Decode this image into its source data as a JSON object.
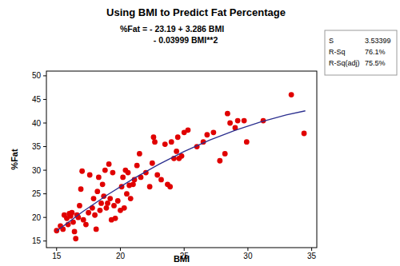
{
  "chart_data": {
    "type": "scatter",
    "title": "Using BMI to Predict Fat Percentage",
    "subtitle": [
      "%Fat = - 23.19 + 3.286 BMI",
      "- 0.03999 BMI**2"
    ],
    "x_label": "BMI",
    "y_label": "%Fat",
    "xlim": [
      14.2,
      35.4
    ],
    "ylim": [
      13.6,
      51
    ],
    "xticks": [
      15,
      20,
      25,
      30,
      35
    ],
    "yticks": [
      15,
      20,
      25,
      30,
      35,
      40,
      45,
      50
    ],
    "grid": false,
    "annotations": [
      {
        "label": "S",
        "value": "3.53399"
      },
      {
        "label": "R-Sq",
        "value": "76.1%"
      },
      {
        "label": "R-Sq(adj)",
        "value": "75.5%"
      }
    ],
    "series": [
      {
        "type": "scatter",
        "color": "#e00000",
        "marker": "circle",
        "x": [
          15.0,
          15.3,
          15.5,
          15.6,
          15.8,
          15.9,
          16.0,
          16.1,
          16.2,
          16.3,
          16.4,
          16.5,
          16.6,
          16.7,
          16.8,
          16.9,
          17.0,
          17.1,
          17.3,
          17.5,
          17.6,
          17.8,
          17.9,
          18.0,
          18.1,
          18.2,
          18.3,
          18.4,
          18.5,
          18.6,
          18.7,
          18.8,
          18.9,
          19.0,
          19.1,
          19.2,
          19.3,
          19.4,
          19.5,
          19.6,
          19.8,
          20.0,
          20.1,
          20.2,
          20.3,
          20.4,
          20.5,
          20.6,
          20.7,
          20.8,
          21.0,
          21.1,
          21.3,
          21.5,
          21.6,
          22.0,
          22.3,
          22.5,
          22.6,
          22.7,
          22.9,
          23.2,
          23.5,
          23.7,
          23.9,
          24.0,
          24.2,
          24.4,
          24.5,
          24.6,
          24.8,
          25.0,
          25.3,
          26.0,
          26.5,
          26.8,
          27.3,
          27.8,
          28.2,
          28.4,
          28.6,
          29.0,
          29.2,
          29.7,
          29.9,
          31.2,
          33.4,
          34.4
        ],
        "values": [
          17.2,
          18.2,
          17.5,
          20.5,
          19.8,
          18.5,
          20.8,
          20.3,
          21.0,
          19.0,
          17.0,
          15.5,
          20.5,
          20.0,
          22.5,
          26.0,
          29.8,
          19.5,
          18.5,
          21.0,
          29.0,
          22.0,
          24.0,
          20.5,
          17.5,
          25.5,
          28.5,
          21.5,
          23.0,
          27.0,
          24.5,
          30.0,
          22.0,
          23.0,
          31.3,
          24.0,
          19.5,
          29.5,
          22.5,
          19.8,
          23.5,
          21.5,
          26.5,
          28.5,
          22.0,
          30.0,
          25.0,
          29.5,
          26.8,
          24.0,
          27.0,
          28.0,
          31.0,
          33.5,
          28.5,
          29.5,
          26.5,
          31.5,
          37.0,
          36.0,
          29.0,
          28.0,
          35.5,
          27.0,
          26.5,
          36.0,
          32.5,
          34.0,
          37.0,
          32.5,
          33.0,
          38.0,
          38.5,
          35.0,
          36.0,
          37.5,
          38.0,
          32.0,
          33.5,
          42.0,
          40.0,
          39.0,
          40.5,
          40.5,
          36.0,
          40.5,
          46.0,
          37.8
        ]
      },
      {
        "type": "line",
        "color": "#2b2f8f",
        "x": [
          15,
          17,
          19,
          21,
          23,
          25,
          27,
          29,
          31,
          33,
          34.5
        ],
        "values": [
          17.1,
          21.12,
          24.81,
          28.18,
          31.23,
          33.97,
          36.38,
          38.47,
          40.25,
          41.7,
          42.58
        ]
      }
    ]
  }
}
